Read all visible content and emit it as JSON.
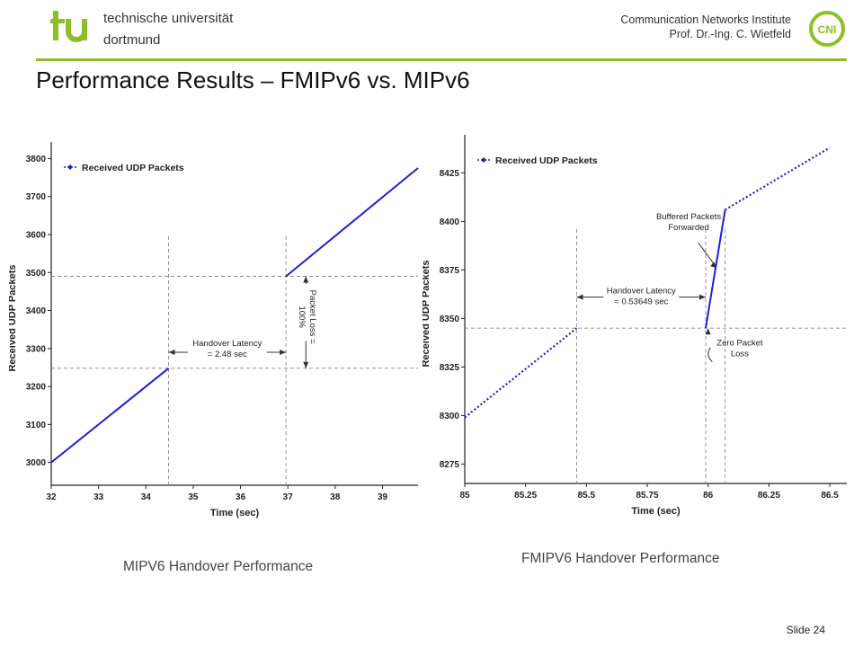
{
  "header": {
    "university_line1": "technische universität",
    "university_line2": "dortmund",
    "institute_line1": "Communication Networks Institute",
    "institute_line2": "Prof. Dr.-Ing. C. Wietfeld",
    "cni_logo_text": "CNI",
    "accent_color": "#8cbf26"
  },
  "slide": {
    "title": "Performance Results – FMIPv6 vs. MIPv6",
    "number": "Slide 24"
  },
  "captions": {
    "left": "MIPV6 Handover Performance",
    "right": "FMIPV6 Handover Performance"
  },
  "chart_data": [
    {
      "type": "line",
      "xlabel": "Time (sec)",
      "ylabel": "Received UDP Packets",
      "xlim": [
        32,
        39.75
      ],
      "ylim": [
        2940,
        3820
      ],
      "xticks": [
        32,
        33,
        34,
        35,
        36,
        37,
        38,
        39
      ],
      "yticks": [
        3000,
        3100,
        3200,
        3300,
        3400,
        3500,
        3600,
        3700,
        3800
      ],
      "legend": "top-left",
      "grid": false,
      "series": [
        {
          "name": "Received UDP Packets",
          "color": "#1f1fd6",
          "style": "solid",
          "segments": [
            [
              [
                32,
                3000
              ],
              [
                34.48,
                3248
              ]
            ],
            [
              [
                36.96,
                3490
              ],
              [
                39.75,
                3775
              ]
            ]
          ]
        }
      ],
      "annotations": {
        "handover": "Handover Latency\n= 2.48 sec",
        "packet_loss": "Packet Loss =\n100%"
      },
      "reference_lines": {
        "vertical_x": [
          34.48,
          36.96
        ],
        "horizontal_y": [
          3248,
          3490
        ]
      }
    },
    {
      "type": "line",
      "xlabel": "Time (sec)",
      "ylabel": "Received UDP Packets",
      "xlim": [
        85,
        86.57
      ],
      "ylim": [
        8265,
        8440
      ],
      "xticks": [
        85,
        85.25,
        85.5,
        85.75,
        86,
        86.25,
        86.5
      ],
      "yticks": [
        8275,
        8300,
        8325,
        8350,
        8375,
        8400,
        8425
      ],
      "legend": "top-left",
      "grid": false,
      "series": [
        {
          "name": "Received UDP Packets",
          "color": "#1f1fd6",
          "style": "dotted",
          "segments": [
            [
              [
                85,
                8299
              ],
              [
                85.46,
                8345
              ]
            ],
            [
              [
                86.07,
                8406
              ],
              [
                86.5,
                8438
              ]
            ]
          ]
        },
        {
          "name": "Buffered Packets Forwarded",
          "color": "#1f1fd6",
          "style": "solid",
          "segments": [
            [
              [
                85.99,
                8345
              ],
              [
                86.07,
                8406
              ]
            ]
          ]
        }
      ],
      "annotations": {
        "handover": "Handover Latency\n= 0.53649 sec",
        "buffered": "Buffered Packets\nForwarded",
        "zero_loss": "Zero Packet\nLoss"
      },
      "reference_lines": {
        "vertical_x": [
          85.46,
          85.99,
          86.07
        ],
        "horizontal_y": [
          8345
        ]
      }
    }
  ]
}
